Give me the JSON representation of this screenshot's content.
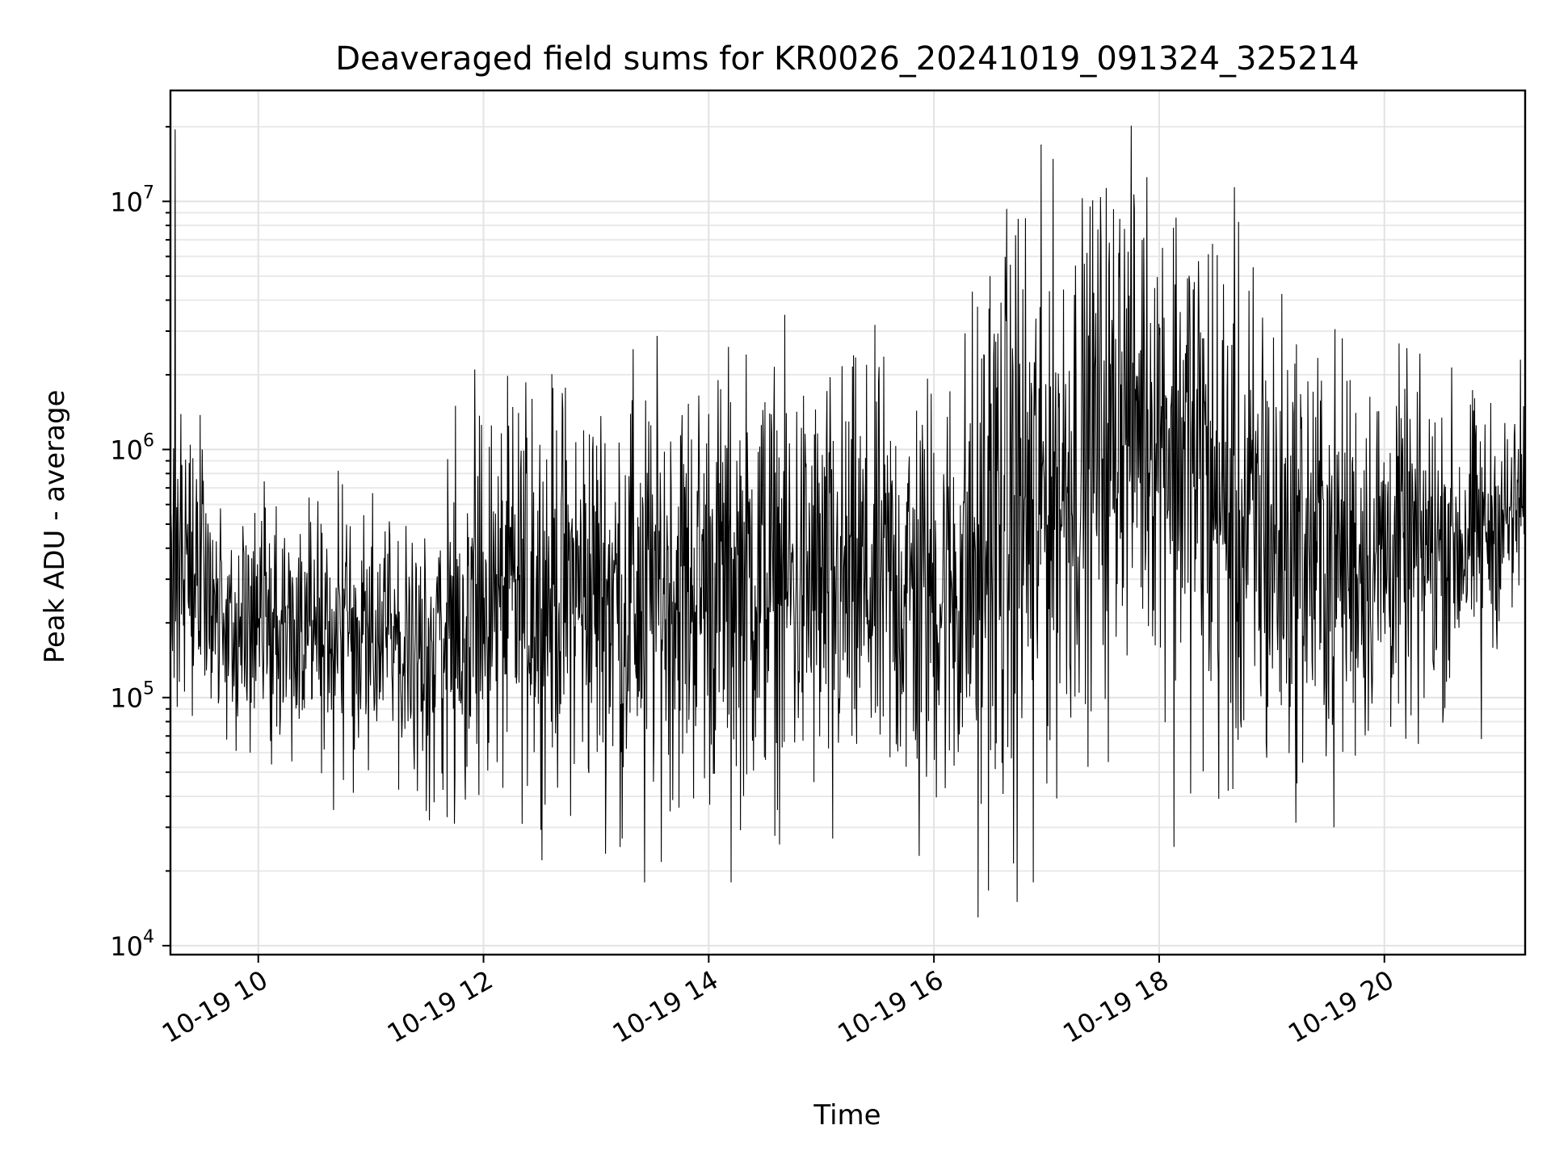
{
  "chart_data": {
    "type": "line",
    "title": "Deaveraged field sums for KR0026_20241019_091324_325214",
    "xlabel": "Time",
    "ylabel": "Peak ADU - average",
    "yscale": "log",
    "x_unit": "hours (2024-10-19, local clock)",
    "xlim": [
      9.22,
      21.25
    ],
    "ylim": [
      9200,
      28000000
    ],
    "grid": true,
    "x_ticks": [
      {
        "value": 10,
        "label": "10-19 10"
      },
      {
        "value": 12,
        "label": "10-19 12"
      },
      {
        "value": 14,
        "label": "10-19 14"
      },
      {
        "value": 16,
        "label": "10-19 16"
      },
      {
        "value": 18,
        "label": "10-19 18"
      },
      {
        "value": 20,
        "label": "10-19 20"
      }
    ],
    "y_ticks": [
      {
        "value": 10000,
        "base": "10",
        "exp": "4"
      },
      {
        "value": 100000,
        "base": "10",
        "exp": "5"
      },
      {
        "value": 1000000,
        "base": "10",
        "exp": "6"
      },
      {
        "value": 10000000,
        "base": "10",
        "exp": "7"
      }
    ],
    "series": [
      {
        "color": "#000000",
        "x": [
          9.22,
          9.3,
          9.4,
          9.5,
          9.6,
          9.7,
          9.8,
          9.9,
          10.0,
          10.2,
          10.4,
          10.6,
          10.8,
          11.0,
          11.2,
          11.4,
          11.6,
          11.8,
          12.0,
          12.2,
          12.4,
          12.6,
          12.8,
          13.0,
          13.2,
          13.4,
          13.6,
          13.8,
          14.0,
          14.2,
          14.4,
          14.6,
          14.8,
          15.0,
          15.2,
          15.4,
          15.6,
          15.8,
          16.0,
          16.2,
          16.4,
          16.6,
          16.8,
          17.0,
          17.2,
          17.4,
          17.6,
          17.8,
          18.0,
          18.2,
          18.4,
          18.6,
          18.8,
          19.0,
          19.2,
          19.4,
          19.6,
          19.8,
          20.0,
          20.2,
          20.4,
          20.6,
          20.8,
          21.0,
          21.25
        ],
        "y": [
          330000,
          380000,
          350000,
          300000,
          260000,
          220000,
          200000,
          190000,
          200000,
          210000,
          200000,
          190000,
          180000,
          170000,
          160000,
          155000,
          160000,
          190000,
          220000,
          240000,
          260000,
          270000,
          270000,
          270000,
          260000,
          260000,
          270000,
          280000,
          290000,
          300000,
          300000,
          290000,
          280000,
          270000,
          270000,
          280000,
          280000,
          270000,
          270000,
          280000,
          380000,
          480000,
          550000,
          650000,
          800000,
          1050000,
          1300000,
          1450000,
          1350000,
          1050000,
          750000,
          520000,
          450000,
          420000,
          400000,
          380000,
          370000,
          370000,
          380000,
          390000,
          400000,
          420000,
          450000,
          500000,
          560000
        ],
        "spread_decades": [
          0.28,
          0.28,
          0.28,
          0.26,
          0.24,
          0.24,
          0.24,
          0.24,
          0.26,
          0.26,
          0.26,
          0.26,
          0.28,
          0.28,
          0.28,
          0.28,
          0.3,
          0.34,
          0.36,
          0.38,
          0.38,
          0.38,
          0.4,
          0.4,
          0.42,
          0.42,
          0.42,
          0.42,
          0.42,
          0.42,
          0.42,
          0.42,
          0.42,
          0.42,
          0.42,
          0.42,
          0.42,
          0.42,
          0.42,
          0.44,
          0.54,
          0.58,
          0.58,
          0.56,
          0.52,
          0.5,
          0.48,
          0.46,
          0.46,
          0.52,
          0.56,
          0.56,
          0.52,
          0.48,
          0.44,
          0.42,
          0.4,
          0.38,
          0.36,
          0.34,
          0.32,
          0.3,
          0.26,
          0.22,
          0.2
        ],
        "spikes": [
          {
            "x": 9.26,
            "y": 19500000
          },
          {
            "x": 9.5,
            "y": 1000000
          },
          {
            "x": 9.65,
            "y": 100000
          },
          {
            "x": 9.93,
            "y": 60000
          },
          {
            "x": 11.52,
            "y": 32000
          },
          {
            "x": 11.75,
            "y": 1500000
          },
          {
            "x": 11.92,
            "y": 2100000
          },
          {
            "x": 12.07,
            "y": 1250000
          },
          {
            "x": 12.43,
            "y": 1600000
          },
          {
            "x": 13.23,
            "y": 27000
          },
          {
            "x": 13.32,
            "y": 1580000
          },
          {
            "x": 13.43,
            "y": 18000
          },
          {
            "x": 14.2,
            "y": 18000
          },
          {
            "x": 14.5,
            "y": 1550000
          },
          {
            "x": 15.1,
            "y": 27000
          },
          {
            "x": 15.87,
            "y": 23000
          },
          {
            "x": 16.39,
            "y": 13000
          },
          {
            "x": 16.5,
            "y": 5000000
          },
          {
            "x": 16.74,
            "y": 15000
          },
          {
            "x": 16.75,
            "y": 8500000
          },
          {
            "x": 16.88,
            "y": 18000
          },
          {
            "x": 17.36,
            "y": 6200000
          },
          {
            "x": 17.55,
            "y": 55000
          },
          {
            "x": 17.65,
            "y": 8500000
          },
          {
            "x": 18.03,
            "y": 6500000
          },
          {
            "x": 18.13,
            "y": 25000
          },
          {
            "x": 18.92,
            "y": 3400000
          },
          {
            "x": 19.55,
            "y": 30000
          },
          {
            "x": 20.3,
            "y": 65000
          },
          {
            "x": 20.86,
            "y": 68000
          },
          {
            "x": 21.21,
            "y": 2300000
          }
        ]
      }
    ]
  }
}
